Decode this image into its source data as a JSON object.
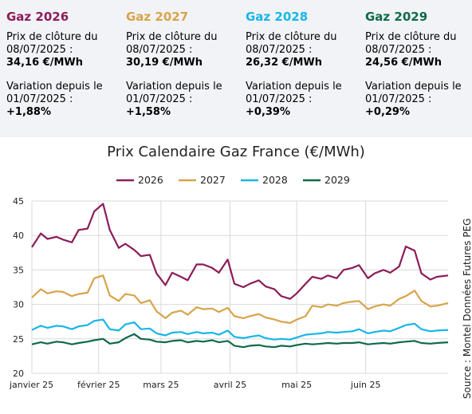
{
  "cards": [
    {
      "title": "Gaz 2026",
      "color": "#8c1c5a",
      "close_label_1": "Prix de clôture du",
      "close_label_2": "08/07/2025 :",
      "close_value": "34,16 €/MWh",
      "var_label_1": "Variation depuis le",
      "var_label_2": "01/07/2025 :",
      "var_value": "+1,88%"
    },
    {
      "title": "Gaz 2027",
      "color": "#d8a44a",
      "close_label_1": "Prix de clôture du",
      "close_label_2": "08/07/2025 :",
      "close_value": "30,19 €/MWh",
      "var_label_1": "Variation depuis le",
      "var_label_2": "01/07/2025 :",
      "var_value": "+1,58%"
    },
    {
      "title": "Gaz 2028",
      "color": "#18b6e8",
      "close_label_1": "Prix de clôture du",
      "close_label_2": "08/07/2025 :",
      "close_value": "26,32 €/MWh",
      "var_label_1": "Variation depuis le",
      "var_label_2": "01/07/2025 :",
      "var_value": "+0,39%"
    },
    {
      "title": "Gaz 2029",
      "color": "#106a48",
      "close_label_1": "Prix de clôture du",
      "close_label_2": "08/07/2025 :",
      "close_value": "24,56 €/MWh",
      "var_label_1": "Variation depuis le",
      "var_label_2": "01/07/2025 :",
      "var_value": "+0,29%"
    }
  ],
  "source": "Source : Montel Données Futures PEG",
  "chart_data": {
    "type": "line",
    "title": "Prix Calendaire Gaz France (€/MWh)",
    "xlabel": "",
    "ylabel": "",
    "ylim": [
      20,
      45
    ],
    "xlim": [
      "2025-01-02",
      "2025-07-08"
    ],
    "yticks": [
      20,
      25,
      30,
      35,
      40,
      45
    ],
    "xticks": [
      {
        "label": "janvier 25",
        "date": "2025-01-01"
      },
      {
        "label": "février 25",
        "date": "2025-02-01"
      },
      {
        "label": "mars 25",
        "date": "2025-03-01"
      },
      {
        "label": "avril 25",
        "date": "2025-04-01"
      },
      {
        "label": "mai 25",
        "date": "2025-05-01"
      },
      {
        "label": "juin 25",
        "date": "2025-06-01"
      }
    ],
    "grid": true,
    "legend": "top",
    "x": [
      "2025-01-02",
      "2025-01-06",
      "2025-01-09",
      "2025-01-13",
      "2025-01-16",
      "2025-01-20",
      "2025-01-23",
      "2025-01-27",
      "2025-01-30",
      "2025-02-03",
      "2025-02-06",
      "2025-02-10",
      "2025-02-13",
      "2025-02-17",
      "2025-02-20",
      "2025-02-24",
      "2025-02-27",
      "2025-03-03",
      "2025-03-06",
      "2025-03-10",
      "2025-03-13",
      "2025-03-17",
      "2025-03-20",
      "2025-03-24",
      "2025-03-27",
      "2025-03-31",
      "2025-04-03",
      "2025-04-07",
      "2025-04-10",
      "2025-04-14",
      "2025-04-17",
      "2025-04-21",
      "2025-04-24",
      "2025-04-28",
      "2025-05-01",
      "2025-05-05",
      "2025-05-08",
      "2025-05-12",
      "2025-05-15",
      "2025-05-19",
      "2025-05-22",
      "2025-05-26",
      "2025-05-29",
      "2025-06-02",
      "2025-06-05",
      "2025-06-09",
      "2025-06-12",
      "2025-06-16",
      "2025-06-19",
      "2025-06-23",
      "2025-06-26",
      "2025-06-30",
      "2025-07-03",
      "2025-07-08"
    ],
    "series": [
      {
        "name": "2026",
        "color": "#8c1c5a",
        "values": [
          38.3,
          40.3,
          39.5,
          39.8,
          39.4,
          39.0,
          40.8,
          41.0,
          43.5,
          44.6,
          40.8,
          38.2,
          38.8,
          37.9,
          37.0,
          37.2,
          34.5,
          32.8,
          34.6,
          34.0,
          33.5,
          35.8,
          35.8,
          35.3,
          34.6,
          36.5,
          33.0,
          32.5,
          33.0,
          33.5,
          32.6,
          32.2,
          31.2,
          30.8,
          31.6,
          33.0,
          34.0,
          33.7,
          34.2,
          33.8,
          35.0,
          35.3,
          35.7,
          33.8,
          34.5,
          35.0,
          34.6,
          35.5,
          38.4,
          37.8,
          34.5,
          33.6,
          34.0,
          34.2
        ]
      },
      {
        "name": "2027",
        "color": "#d8a44a",
        "values": [
          31.0,
          32.2,
          31.6,
          31.9,
          31.8,
          31.2,
          31.5,
          31.7,
          33.8,
          34.2,
          31.3,
          30.5,
          31.5,
          31.3,
          30.2,
          30.6,
          29.0,
          28.0,
          28.8,
          29.1,
          28.5,
          29.6,
          29.3,
          29.4,
          28.9,
          29.5,
          28.3,
          28.0,
          28.3,
          28.6,
          28.1,
          27.8,
          27.5,
          27.3,
          27.8,
          28.3,
          29.8,
          29.6,
          30.0,
          29.8,
          30.2,
          30.4,
          30.5,
          29.3,
          29.7,
          30.0,
          29.8,
          30.8,
          31.2,
          32.0,
          30.5,
          29.7,
          29.8,
          30.2
        ]
      },
      {
        "name": "2028",
        "color": "#18b6e8",
        "values": [
          26.3,
          26.9,
          26.6,
          26.9,
          26.8,
          26.4,
          26.8,
          27.0,
          27.6,
          27.8,
          26.4,
          26.2,
          27.1,
          27.4,
          26.4,
          26.5,
          25.8,
          25.5,
          25.9,
          26.0,
          25.7,
          26.0,
          25.8,
          25.9,
          25.6,
          26.2,
          25.3,
          25.1,
          25.3,
          25.5,
          25.1,
          24.9,
          25.0,
          24.9,
          25.2,
          25.6,
          25.7,
          25.8,
          26.0,
          25.9,
          26.0,
          26.1,
          26.4,
          25.8,
          26.0,
          26.2,
          26.1,
          26.6,
          27.0,
          27.2,
          26.4,
          26.1,
          26.2,
          26.3
        ]
      },
      {
        "name": "2029",
        "color": "#106a48",
        "values": [
          24.2,
          24.5,
          24.3,
          24.6,
          24.5,
          24.2,
          24.4,
          24.6,
          24.8,
          25.0,
          24.3,
          24.5,
          25.1,
          25.7,
          25.0,
          24.9,
          24.6,
          24.5,
          24.7,
          24.8,
          24.5,
          24.7,
          24.6,
          24.8,
          24.5,
          24.7,
          24.0,
          23.8,
          24.0,
          24.1,
          23.9,
          23.8,
          24.0,
          23.9,
          24.1,
          24.3,
          24.2,
          24.3,
          24.4,
          24.3,
          24.4,
          24.4,
          24.5,
          24.2,
          24.3,
          24.4,
          24.3,
          24.5,
          24.6,
          24.7,
          24.4,
          24.3,
          24.4,
          24.5
        ]
      }
    ]
  }
}
